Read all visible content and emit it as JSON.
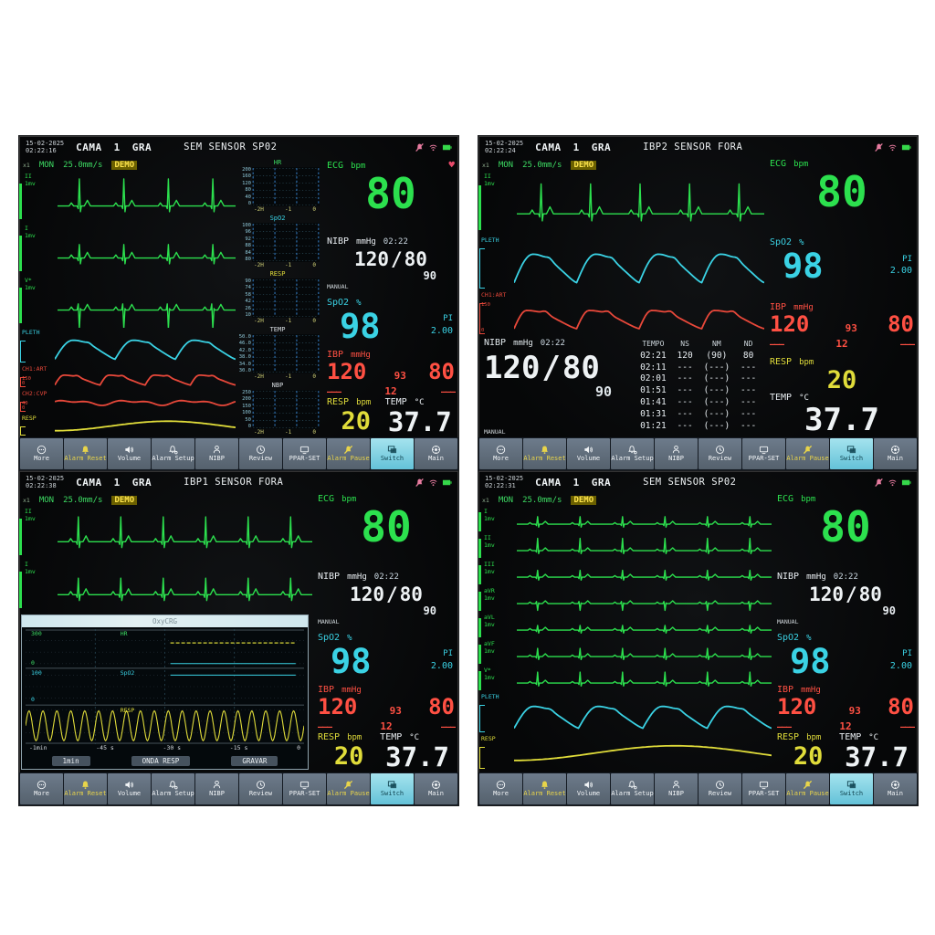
{
  "shared": {
    "x1_label": "x1",
    "subheader": {
      "mode": "MON",
      "speed": "25.0mm/s",
      "demo": "DEMO"
    },
    "trend_xticks": [
      "-2H",
      "-1",
      "0"
    ],
    "header_icons": [
      "alarm-off-icon",
      "wifi-icon",
      "battery-icon"
    ],
    "toolbar": {
      "buttons": [
        {
          "name": "more",
          "label": "More",
          "icon": "more-icon",
          "accent": "",
          "active": false
        },
        {
          "name": "alarm-reset",
          "label": "Alarm Reset",
          "icon": "alarm-reset-icon",
          "accent": "#e8d44a",
          "active": false
        },
        {
          "name": "volume",
          "label": "Volume",
          "icon": "volume-icon",
          "accent": "",
          "active": false
        },
        {
          "name": "alarm-setup",
          "label": "Alarm Setup",
          "icon": "alarm-setup-icon",
          "accent": "",
          "active": false
        },
        {
          "name": "nibp",
          "label": "NIBP",
          "icon": "nibp-icon",
          "accent": "",
          "active": false
        },
        {
          "name": "review",
          "label": "Review",
          "icon": "review-icon",
          "accent": "",
          "active": false
        },
        {
          "name": "ppar-set",
          "label": "PPAR-SET",
          "icon": "ppar-set-icon",
          "accent": "",
          "active": false
        },
        {
          "name": "alarm-pause",
          "label": "Alarm Pause",
          "icon": "alarm-pause-icon",
          "accent": "#e8d44a",
          "active": false
        },
        {
          "name": "switch",
          "label": "Switch",
          "icon": "switch-icon",
          "accent": "",
          "active": true
        },
        {
          "name": "main",
          "label": "Main",
          "icon": "main-icon",
          "accent": "",
          "active": false
        }
      ]
    }
  },
  "panels": [
    {
      "header": {
        "date": "15-02-2025",
        "time": "02:22:16",
        "bed_label": "CAMA",
        "bed_number": "1",
        "size_label": "GRA",
        "message": "SEM SENSOR SP02"
      },
      "waves": [
        {
          "label": "II",
          "gain": "1mv",
          "scale_top": "",
          "scale_bottom": "",
          "color": "#2ce04e",
          "type": "ecg",
          "cycles": 4,
          "amp": 1
        },
        {
          "label": "I",
          "gain": "1mv",
          "scale_top": "",
          "scale_bottom": "",
          "color": "#2ce04e",
          "type": "ecg",
          "cycles": 4,
          "amp": 0.5
        },
        {
          "label": "V*",
          "gain": "1mv",
          "scale_top": "",
          "scale_bottom": "",
          "color": "#2ce04e",
          "type": "ecgneg",
          "cycles": 4,
          "amp": 1
        },
        {
          "label": "PLETH",
          "gain": "",
          "scale_top": "",
          "scale_bottom": "",
          "color": "#3ad2e4",
          "type": "pleth",
          "cycles": 3,
          "amp": 1
        },
        {
          "label": "CH1:ART",
          "gain": "",
          "scale_top": "150",
          "scale_bottom": "0",
          "color": "#e8483a",
          "type": "art",
          "cycles": 4,
          "amp": 1
        },
        {
          "label": "CH2:CVP",
          "gain": "",
          "scale_top": "40",
          "scale_bottom": "0",
          "color": "#e8483a",
          "type": "cvp",
          "cycles": 3,
          "amp": 1
        },
        {
          "label": "RESP",
          "gain": "",
          "scale_top": "",
          "scale_bottom": "",
          "color": "#e0dc3a",
          "type": "resp",
          "cycles": 1,
          "amp": 1
        }
      ],
      "trends": [
        {
          "title": "HR",
          "color": "#3ddb63",
          "ticks": [
            "200",
            "160",
            "120",
            "80",
            "40",
            "0"
          ]
        },
        {
          "title": "SpO2",
          "color": "#3ad2e4",
          "ticks": [
            "100",
            "96",
            "92",
            "88",
            "84",
            "80"
          ]
        },
        {
          "title": "RESP",
          "color": "#e0dc3a",
          "ticks": [
            "90",
            "74",
            "58",
            "42",
            "26",
            "10"
          ]
        },
        {
          "title": "TEMP",
          "color": "#d8dde2",
          "ticks": [
            "50.0",
            "46.0",
            "42.0",
            "38.0",
            "34.0",
            "30.0"
          ]
        },
        {
          "title": "NBP",
          "color": "#d8dde2",
          "ticks": [
            "250",
            "200",
            "150",
            "100",
            "50",
            "0"
          ]
        }
      ],
      "vitals": {
        "ecg": {
          "label": "ECG",
          "unit": "bpm",
          "value": "80",
          "heart": "♥"
        },
        "nibp": {
          "label": "NIBP",
          "unit": "mmHg",
          "time": "02:22",
          "sys": "120",
          "sep": "/",
          "dia": "80",
          "map": "90",
          "mode": "MANUAL"
        },
        "spo2": {
          "label": "SpO2",
          "unit": "%",
          "value": "98",
          "pi_label": "PI",
          "pi_value": "2.00"
        },
        "ibp": {
          "label": "IBP",
          "unit": "mmHg",
          "sys": "120",
          "map": "93",
          "dia": "80",
          "sys2": "———",
          "map2": "12",
          "dia2": "———"
        },
        "resp": {
          "label": "RESP",
          "unit": "bpm",
          "value": "20"
        },
        "temp": {
          "label": "TEMP",
          "unit": "°C",
          "value": "37.7"
        }
      }
    },
    {
      "header": {
        "date": "15-02-2025",
        "time": "02:22:24",
        "bed_label": "CAMA",
        "bed_number": "1",
        "size_label": "GRA",
        "message": "IBP2 SENSOR FORA"
      },
      "waves": [
        {
          "label": "II",
          "gain": "1mv",
          "scale_top": "",
          "scale_bottom": "",
          "color": "#2ce04e",
          "type": "ecg",
          "cycles": 5,
          "amp": 0.9
        },
        {
          "label": "PLETH",
          "gain": "",
          "scale_top": "",
          "scale_bottom": "",
          "color": "#3ad2e4",
          "type": "pleth",
          "cycles": 4,
          "amp": 1
        },
        {
          "label": "CH1:ART",
          "gain": "",
          "scale_top": "150",
          "scale_bottom": "0",
          "color": "#e8483a",
          "type": "art",
          "cycles": 4,
          "amp": 1
        }
      ],
      "nibp_table": {
        "headers": [
          "TEMPO",
          "NS",
          "NM",
          "ND"
        ],
        "rows": [
          [
            "02:21",
            "120",
            "(90)",
            "80"
          ],
          [
            "02:11",
            "---",
            "(---)",
            "---"
          ],
          [
            "02:01",
            "---",
            "(---)",
            "---"
          ],
          [
            "01:51",
            "---",
            "(---)",
            "---"
          ],
          [
            "01:41",
            "---",
            "(---)",
            "---"
          ],
          [
            "01:31",
            "---",
            "(---)",
            "---"
          ],
          [
            "01:21",
            "---",
            "(---)",
            "---"
          ]
        ]
      },
      "vitals": {
        "ecg": {
          "label": "ECG",
          "unit": "bpm",
          "value": "80"
        },
        "nibp": {
          "label": "NIBP",
          "unit": "mmHg",
          "time": "02:22",
          "sys": "120",
          "sep": "/",
          "dia": "80",
          "map": "90",
          "mode": "MANUAL"
        },
        "spo2": {
          "label": "SpO2",
          "unit": "%",
          "value": "98",
          "pi_label": "PI",
          "pi_value": "2.00"
        },
        "ibp": {
          "label": "IBP",
          "unit": "mmHg",
          "sys": "120",
          "map": "93",
          "dia": "80",
          "sys2": "———",
          "map2": "12",
          "dia2": "———"
        },
        "resp": {
          "label": "RESP",
          "unit": "bpm",
          "value": "20"
        },
        "temp": {
          "label": "TEMP",
          "unit": "°C",
          "value": "37.7"
        }
      }
    },
    {
      "header": {
        "date": "15-02-2025",
        "time": "02:22:38",
        "bed_label": "CAMA",
        "bed_number": "1",
        "size_label": "GRA",
        "message": "IBP1 SENSOR FORA"
      },
      "waves": [
        {
          "label": "II",
          "gain": "1mv",
          "scale_top": "",
          "scale_bottom": "",
          "color": "#2ce04e",
          "type": "ecg",
          "cycles": 6,
          "amp": 0.9
        },
        {
          "label": "I",
          "gain": "1mv",
          "scale_top": "",
          "scale_bottom": "",
          "color": "#2ce04e",
          "type": "ecg",
          "cycles": 6,
          "amp": 0.6
        }
      ],
      "oxycrg": {
        "title": "OxyCRG",
        "bands": [
          {
            "label": "HR",
            "color": "#3ddb63",
            "max": "300",
            "min": "0"
          },
          {
            "label": "SpO2",
            "color": "#3ad2e4",
            "max": "100",
            "min": "0"
          },
          {
            "label": "RESP",
            "color": "#e0dc3a",
            "max": "",
            "min": ""
          }
        ],
        "xticks": [
          "-1min",
          "-45 s",
          "-30 s",
          "-15 s",
          "0"
        ],
        "buttons": [
          "1min",
          "ONDA RESP",
          "GRAVAR"
        ]
      },
      "vitals": {
        "ecg": {
          "label": "ECG",
          "unit": "bpm",
          "value": "80"
        },
        "nibp": {
          "label": "NIBP",
          "unit": "mmHg",
          "time": "02:22",
          "sys": "120",
          "sep": "/",
          "dia": "80",
          "map": "90",
          "mode": "MANUAL"
        },
        "spo2": {
          "label": "SpO2",
          "unit": "%",
          "value": "98",
          "pi_label": "PI",
          "pi_value": "2.00"
        },
        "ibp": {
          "label": "IBP",
          "unit": "mmHg",
          "sys": "120",
          "map": "93",
          "dia": "80",
          "sys2": "———",
          "map2": "12",
          "dia2": "———"
        },
        "resp": {
          "label": "RESP",
          "unit": "bpm",
          "value": "20"
        },
        "temp": {
          "label": "TEMP",
          "unit": "°C",
          "value": "37.7"
        }
      }
    },
    {
      "header": {
        "date": "15-02-2025",
        "time": "02:22:31",
        "bed_label": "CAMA",
        "bed_number": "1",
        "size_label": "GRA",
        "message": "SEM SENSOR SP02"
      },
      "waves": [
        {
          "label": "I",
          "gain": "1mv",
          "scale_top": "",
          "scale_bottom": "",
          "color": "#2ce04e",
          "type": "ecg",
          "cycles": 6,
          "amp": 0.55
        },
        {
          "label": "II",
          "gain": "1mv",
          "scale_top": "",
          "scale_bottom": "",
          "color": "#2ce04e",
          "type": "ecg",
          "cycles": 6,
          "amp": 0.9
        },
        {
          "label": "III",
          "gain": "1mv",
          "scale_top": "",
          "scale_bottom": "",
          "color": "#2ce04e",
          "type": "ecg",
          "cycles": 6,
          "amp": 0.5
        },
        {
          "label": "aVR",
          "gain": "1mv",
          "scale_top": "",
          "scale_bottom": "",
          "color": "#2ce04e",
          "type": "ecgneg",
          "cycles": 6,
          "amp": 0.7
        },
        {
          "label": "aVL",
          "gain": "1mv",
          "scale_top": "",
          "scale_bottom": "",
          "color": "#2ce04e",
          "type": "ecg",
          "cycles": 6,
          "amp": 0.35
        },
        {
          "label": "aVF",
          "gain": "1mv",
          "scale_top": "",
          "scale_bottom": "",
          "color": "#2ce04e",
          "type": "ecg",
          "cycles": 6,
          "amp": 0.6
        },
        {
          "label": "V*",
          "gain": "1mv",
          "scale_top": "",
          "scale_bottom": "",
          "color": "#2ce04e",
          "type": "ecg",
          "cycles": 6,
          "amp": 0.8
        },
        {
          "label": "PLETH",
          "gain": "",
          "scale_top": "",
          "scale_bottom": "",
          "color": "#3ad2e4",
          "type": "pleth",
          "cycles": 4,
          "amp": 1
        },
        {
          "label": "RESP",
          "gain": "",
          "scale_top": "",
          "scale_bottom": "",
          "color": "#e0dc3a",
          "type": "resp",
          "cycles": 1,
          "amp": 1
        }
      ],
      "vitals": {
        "ecg": {
          "label": "ECG",
          "unit": "bpm",
          "value": "80"
        },
        "nibp": {
          "label": "NIBP",
          "unit": "mmHg",
          "time": "02:22",
          "sys": "120",
          "sep": "/",
          "dia": "80",
          "map": "90",
          "mode": "MANUAL"
        },
        "spo2": {
          "label": "SpO2",
          "unit": "%",
          "value": "98",
          "pi_label": "PI",
          "pi_value": "2.00"
        },
        "ibp": {
          "label": "IBP",
          "unit": "mmHg",
          "sys": "120",
          "map": "93",
          "dia": "80",
          "sys2": "———",
          "map2": "12",
          "dia2": "———"
        },
        "resp": {
          "label": "RESP",
          "unit": "bpm",
          "value": "20"
        },
        "temp": {
          "label": "TEMP",
          "unit": "°C",
          "value": "37.7"
        }
      }
    }
  ]
}
